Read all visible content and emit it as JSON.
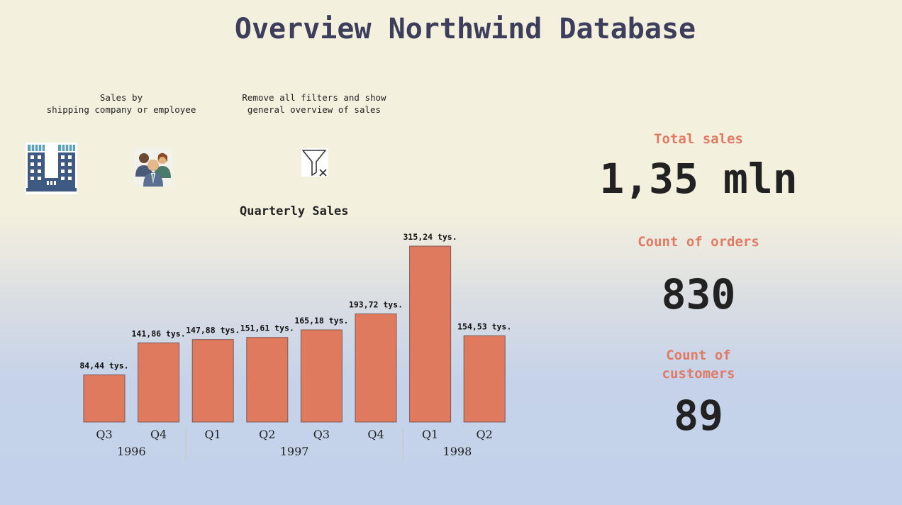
{
  "page": {
    "title": "Overview Northwind Database"
  },
  "buttons": {
    "shipping_caption": "Sales by\nshipping company or employee",
    "filter_caption": "Remove all filters and show\ngeneral overview of sales",
    "shipping_icon": "building-icon",
    "employee_icon": "people-icon",
    "filter_icon": "clear-filter-icon"
  },
  "kpis": {
    "total_sales_label": "Total sales",
    "total_sales_value": "1,35 mln",
    "orders_label": "Count of orders",
    "orders_value": "830",
    "customers_label": "Count of\ncustomers",
    "customers_value": "89"
  },
  "colors": {
    "bar": "#e07a5f",
    "kpi_label": "#e07a63",
    "title": "#3d3d5c"
  },
  "chart_data": {
    "type": "bar",
    "title": "Quarterly Sales",
    "categories": [
      "Q3",
      "Q4",
      "Q1",
      "Q2",
      "Q3",
      "Q4",
      "Q1",
      "Q2"
    ],
    "groups": [
      {
        "label": "1996",
        "categories": [
          "Q3",
          "Q4"
        ]
      },
      {
        "label": "1997",
        "categories": [
          "Q1",
          "Q2",
          "Q3",
          "Q4"
        ]
      },
      {
        "label": "1998",
        "categories": [
          "Q1",
          "Q2"
        ]
      }
    ],
    "values": [
      84.44,
      141.86,
      147.88,
      151.61,
      165.18,
      193.72,
      315.24,
      154.53
    ],
    "data_labels": [
      "84,44 tys.",
      "141,86 tys.",
      "147,88 tys.",
      "151,61 tys.",
      "165,18 tys.",
      "193,72 tys.",
      "315,24 tys.",
      "154,53 tys."
    ],
    "xlabel": "",
    "ylabel": "",
    "ylim": [
      0,
      315.24
    ],
    "grid": false,
    "legend": "none"
  }
}
